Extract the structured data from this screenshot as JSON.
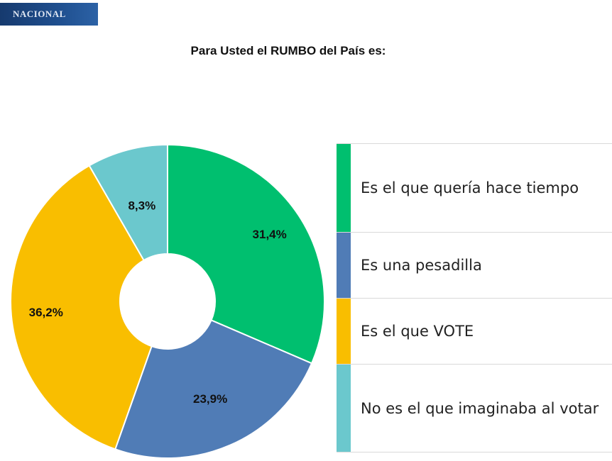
{
  "badge": {
    "text": "NACIONAL"
  },
  "chart_data": {
    "type": "pie",
    "title": "Para Usted el RUMBO del País es:",
    "legend_position": "right",
    "slices": [
      {
        "label": "Es el que quería hace tiempo",
        "value": 31.4,
        "value_label": "31,4%",
        "color": "#00bf6f"
      },
      {
        "label": "Es una pesadilla",
        "value": 23.9,
        "value_label": "23,9%",
        "color": "#507cb6"
      },
      {
        "label": "Es el que VOTE",
        "value": 36.2,
        "value_label": "36,2%",
        "color": "#f9be00"
      },
      {
        "label": "No es el que imaginaba al votar",
        "value": 8.3,
        "value_label": "8,3%",
        "color": "#6bc8cd"
      }
    ]
  }
}
